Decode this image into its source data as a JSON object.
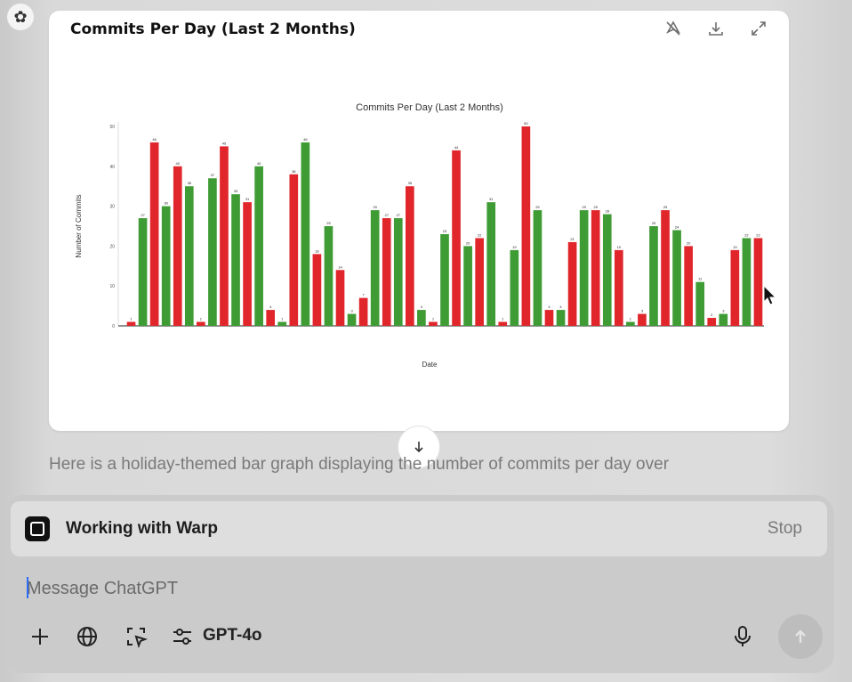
{
  "chart_card": {
    "header_title": "Commits Per Day (Last 2 Months)"
  },
  "chart_data": {
    "type": "bar",
    "title": "Commits Per Day (Last 2 Months)",
    "xlabel": "Date",
    "ylabel": "Number of Commits",
    "ylim": [
      0,
      50
    ],
    "yticks": [
      0,
      10,
      20,
      30,
      40,
      50
    ],
    "grid": false,
    "colors": {
      "red": "#e0262b",
      "green": "#3f9c35"
    },
    "values": [
      1,
      27,
      46,
      30,
      40,
      35,
      1,
      37,
      45,
      33,
      31,
      40,
      4,
      1,
      38,
      46,
      18,
      25,
      14,
      3,
      7,
      29,
      27,
      27,
      35,
      4,
      1,
      23,
      44,
      20,
      22,
      31,
      1,
      19,
      50,
      29,
      4,
      4,
      21,
      29,
      29,
      28,
      19,
      1,
      3,
      25,
      29,
      24,
      20,
      11,
      2,
      3,
      19,
      22,
      22
    ],
    "bar_colors": [
      "red",
      "green",
      "red",
      "green",
      "red",
      "green",
      "red",
      "green",
      "red",
      "green",
      "red",
      "green",
      "red",
      "green",
      "red",
      "green",
      "red",
      "green",
      "red",
      "green",
      "red",
      "green",
      "red",
      "green",
      "red",
      "green",
      "red",
      "green",
      "red",
      "green",
      "red",
      "green",
      "red",
      "green",
      "red",
      "green",
      "red",
      "green",
      "red",
      "green",
      "red",
      "green",
      "red",
      "green",
      "red",
      "green",
      "red",
      "green",
      "red",
      "green",
      "red",
      "green",
      "red",
      "green",
      "red"
    ]
  },
  "response_text": "Here is a holiday-themed bar graph displaying the number of commits per day over",
  "warp": {
    "label": "Working with Warp",
    "stop_label": "Stop"
  },
  "composer": {
    "placeholder": "Message ChatGPT",
    "model_label": "GPT-4o"
  },
  "icons": {
    "logo": "openai-logo-icon",
    "sparkle": "sparkle-off-icon",
    "download": "download-icon",
    "expand": "expand-icon",
    "scroll": "arrow-down-icon",
    "add": "plus-icon",
    "web": "globe-icon",
    "select": "selection-cursor-icon",
    "tools": "sliders-icon",
    "mic": "microphone-icon",
    "send": "arrow-up-icon"
  }
}
